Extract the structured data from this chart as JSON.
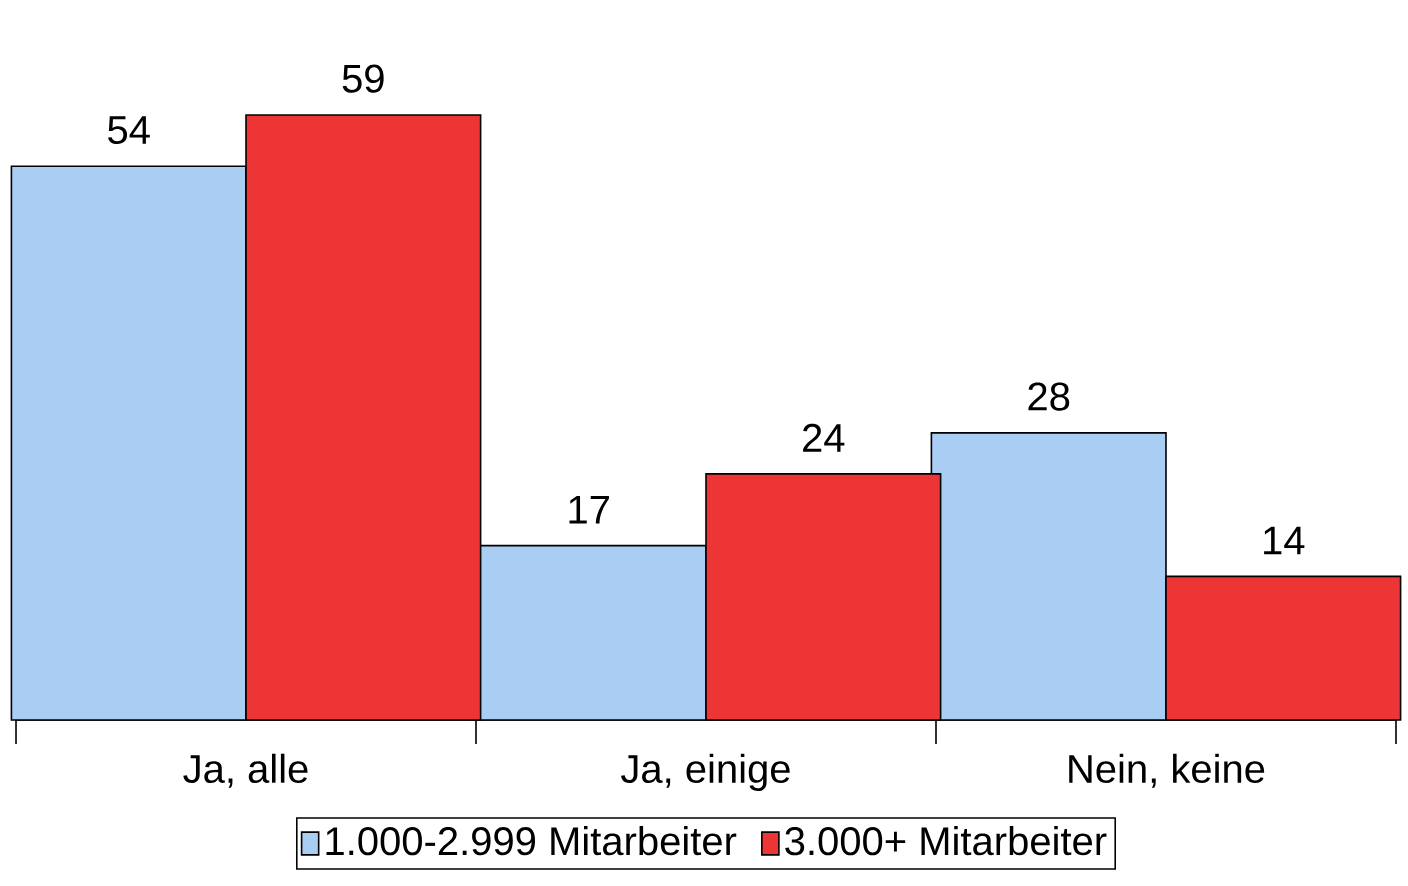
{
  "chart_data": {
    "type": "bar",
    "data_labels": true,
    "legend": "bottom",
    "categories": [
      "Ja, alle",
      "Ja, einige",
      "Nein, keine"
    ],
    "series": [
      {
        "name": "1.000-2.999 Mitarbeiter",
        "color": "#a9cdf3",
        "values": [
          54,
          17,
          28
        ]
      },
      {
        "name": "3.000+ Mitarbeiter",
        "color": "#ee3535",
        "values": [
          59,
          24,
          14
        ]
      }
    ]
  }
}
